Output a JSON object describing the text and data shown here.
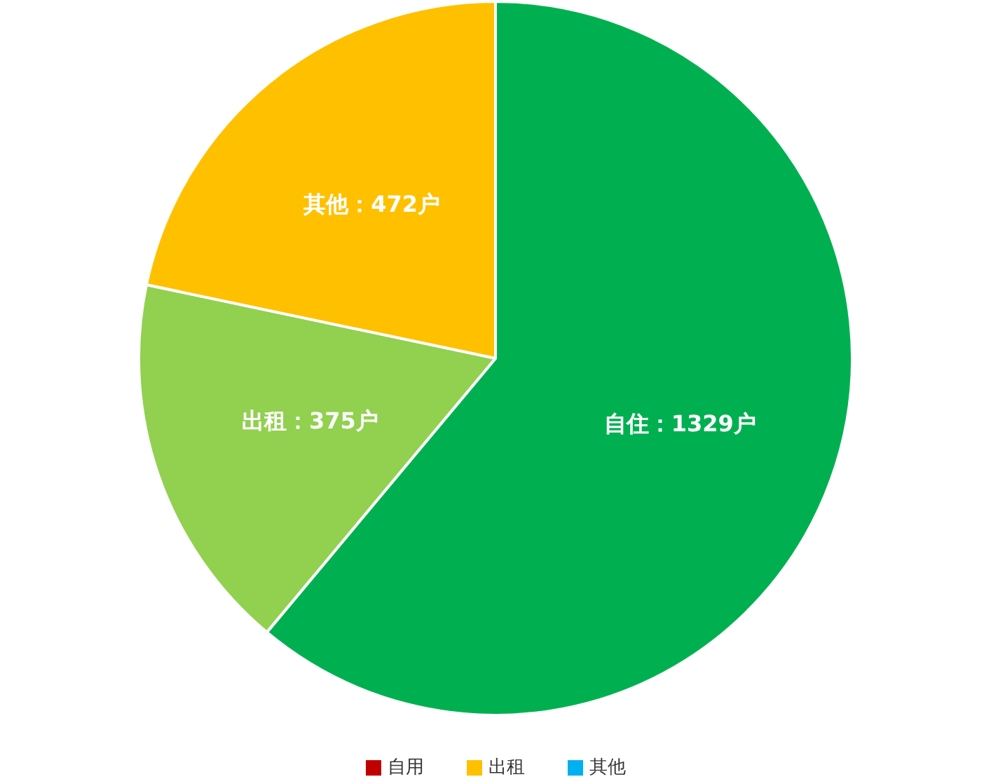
{
  "chart_data": [
    {
      "type": "pie",
      "categories": [
        "自住：1329户",
        "出租：375户",
        "其他：472户"
      ],
      "values": [
        1329,
        375,
        472
      ],
      "colors": [
        "#00b050",
        "#92d050",
        "#ffc000"
      ],
      "legend": false
    },
    {
      "type": "other",
      "categories": [
        "自用",
        "出租",
        "其他"
      ],
      "colors": [
        "#c00000",
        "#ffc000",
        "#00b0f0"
      ]
    }
  ]
}
